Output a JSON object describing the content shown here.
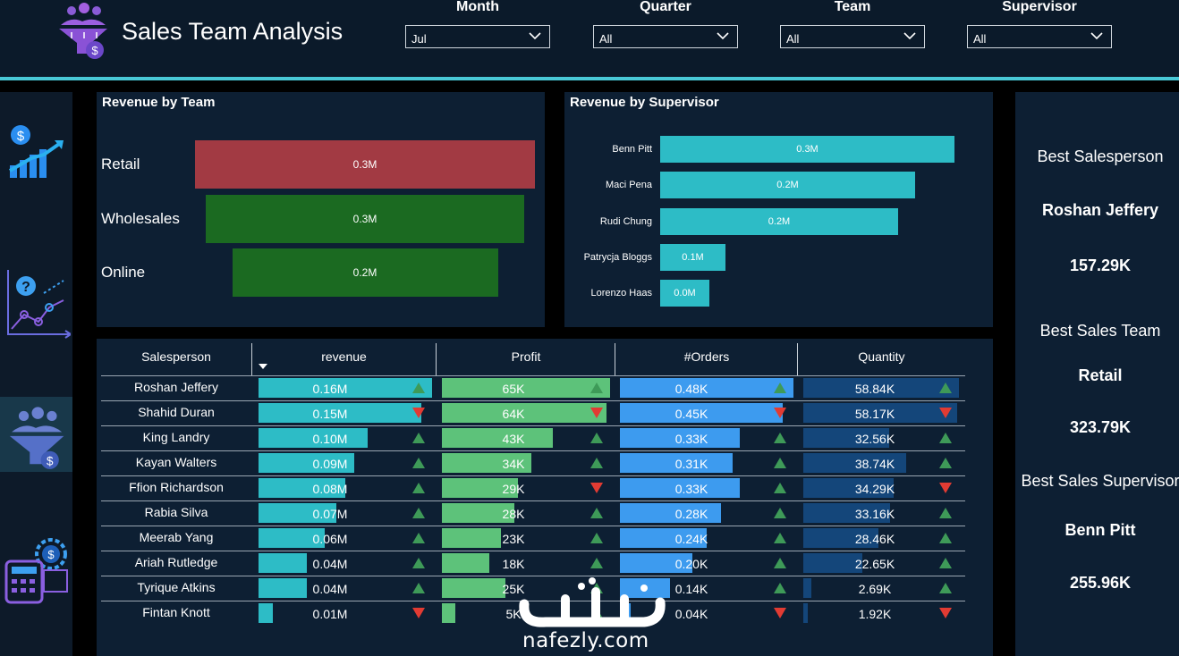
{
  "app": {
    "title": "Sales Team Analysis"
  },
  "filters": [
    {
      "label": "Month",
      "value": "Jul"
    },
    {
      "label": "Quarter",
      "value": "All"
    },
    {
      "label": "Team",
      "value": "All"
    },
    {
      "label": "Supervisor",
      "value": "All"
    }
  ],
  "nav": [
    "revenue-growth-icon",
    "analytics-question-icon",
    "sales-team-funnel-icon",
    "calculator-gear-icon"
  ],
  "revenue_by_team": {
    "title": "Revenue by Team",
    "chart_data": {
      "type": "bar",
      "categories": [
        "Retail",
        "Wholesales",
        "Online"
      ],
      "values": [
        0.32,
        0.3,
        0.25
      ],
      "data_labels": [
        "0.3M",
        "0.3M",
        "0.2M"
      ],
      "colors": [
        "#a23a43",
        "#1b6a21",
        "#1b6a21"
      ]
    }
  },
  "revenue_by_supervisor": {
    "title": "Revenue by Supervisor",
    "chart_data": {
      "type": "bar",
      "categories": [
        "Benn Pitt",
        "Maci Pena",
        "Rudi Chung",
        "Patrycja Bloggs",
        "Lorenzo Haas"
      ],
      "values": [
        0.256,
        0.222,
        0.207,
        0.057,
        0.043
      ],
      "data_labels": [
        "0.3M",
        "0.2M",
        "0.2M",
        "0.1M",
        "0.0M"
      ],
      "color": "#2dbcc6"
    }
  },
  "table": {
    "columns": [
      "Salesperson",
      "revenue",
      "Profit",
      "#Orders",
      "Quantity"
    ],
    "rows": [
      {
        "name": "Roshan Jeffery",
        "revenue": "0.16M",
        "rev_frac": 1.0,
        "rev_up": true,
        "profit": "65K",
        "profit_frac": 1.0,
        "profit_up": true,
        "orders": "0.48K",
        "orders_frac": 1.0,
        "orders_up": true,
        "qty": "58.84K",
        "qty_frac": 1.0,
        "qty_up": true
      },
      {
        "name": "Shahid Duran",
        "revenue": "0.15M",
        "rev_frac": 0.94,
        "rev_up": false,
        "profit": "64K",
        "profit_frac": 0.98,
        "profit_up": false,
        "orders": "0.45K",
        "orders_frac": 0.94,
        "orders_up": false,
        "qty": "58.17K",
        "qty_frac": 0.99,
        "qty_up": false
      },
      {
        "name": "King Landry",
        "revenue": "0.10M",
        "rev_frac": 0.63,
        "rev_up": true,
        "profit": "43K",
        "profit_frac": 0.66,
        "profit_up": true,
        "orders": "0.33K",
        "orders_frac": 0.69,
        "orders_up": true,
        "qty": "32.56K",
        "qty_frac": 0.55,
        "qty_up": true
      },
      {
        "name": "Kayan Walters",
        "revenue": "0.09M",
        "rev_frac": 0.55,
        "rev_up": true,
        "profit": "34K",
        "profit_frac": 0.53,
        "profit_up": true,
        "orders": "0.31K",
        "orders_frac": 0.65,
        "orders_up": true,
        "qty": "38.74K",
        "qty_frac": 0.66,
        "qty_up": true
      },
      {
        "name": "Ffion Richardson",
        "revenue": "0.08M",
        "rev_frac": 0.5,
        "rev_up": true,
        "profit": "29K",
        "profit_frac": 0.45,
        "profit_up": false,
        "orders": "0.33K",
        "orders_frac": 0.69,
        "orders_up": true,
        "qty": "34.29K",
        "qty_frac": 0.58,
        "qty_up": false
      },
      {
        "name": "Rabia Silva",
        "revenue": "0.07M",
        "rev_frac": 0.45,
        "rev_up": true,
        "profit": "28K",
        "profit_frac": 0.43,
        "profit_up": true,
        "orders": "0.28K",
        "orders_frac": 0.58,
        "orders_up": true,
        "qty": "33.16K",
        "qty_frac": 0.56,
        "qty_up": true
      },
      {
        "name": "Meerab Yang",
        "revenue": "0.06M",
        "rev_frac": 0.38,
        "rev_up": true,
        "profit": "23K",
        "profit_frac": 0.35,
        "profit_up": true,
        "orders": "0.24K",
        "orders_frac": 0.5,
        "orders_up": true,
        "qty": "28.46K",
        "qty_frac": 0.48,
        "qty_up": true
      },
      {
        "name": "Ariah Rutledge",
        "revenue": "0.04M",
        "rev_frac": 0.28,
        "rev_up": true,
        "profit": "18K",
        "profit_frac": 0.28,
        "profit_up": true,
        "orders": "0.20K",
        "orders_frac": 0.42,
        "orders_up": true,
        "qty": "22.65K",
        "qty_frac": 0.38,
        "qty_up": true
      },
      {
        "name": "Tyrique Atkins",
        "revenue": "0.04M",
        "rev_frac": 0.28,
        "rev_up": true,
        "profit": "25K",
        "profit_frac": 0.38,
        "profit_up": true,
        "orders": "0.14K",
        "orders_frac": 0.29,
        "orders_up": true,
        "qty": "2.69K",
        "qty_frac": 0.05,
        "qty_up": true
      },
      {
        "name": "Fintan Knott",
        "revenue": "0.01M",
        "rev_frac": 0.08,
        "rev_up": false,
        "profit": "5K",
        "profit_frac": 0.08,
        "profit_up": true,
        "orders": "0.04K",
        "orders_frac": 0.06,
        "orders_up": false,
        "qty": "1.92K",
        "qty_frac": 0.03,
        "qty_up": false
      }
    ]
  },
  "kpis": [
    {
      "label": "Best Salesperson",
      "name": "Roshan Jeffery",
      "value": "157.29K"
    },
    {
      "label": "Best Sales Team",
      "name": "Retail",
      "value": "323.79K"
    },
    {
      "label": "Best Sales Supervisor",
      "name": "Benn Pitt",
      "value": "255.96K"
    }
  ],
  "colors": {
    "revenue_bar": "#2dbcc6",
    "profit_bar": "#5dc27a",
    "orders_bar": "#3d9bef",
    "qty_bar": "#14467a",
    "up": "#3e9a58",
    "down": "#e23b33"
  },
  "watermark": {
    "text": "nafezly.com"
  }
}
